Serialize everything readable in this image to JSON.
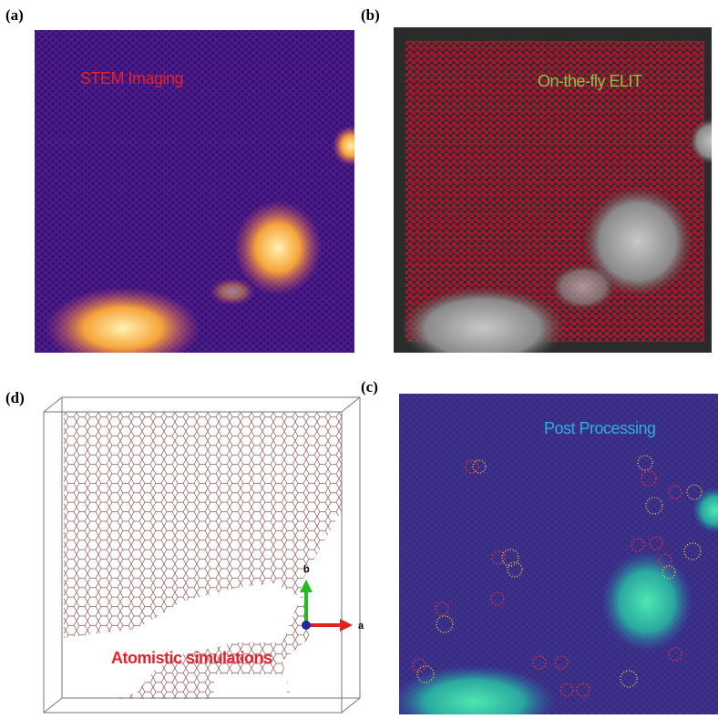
{
  "panels": [
    {
      "label": "(a)",
      "caption": "STEM Imaging"
    },
    {
      "label": "(b)",
      "caption": "On-the-fly ELIT"
    },
    {
      "label": "(d)",
      "caption": "Atomistic simulations",
      "axes": {
        "b": "b",
        "a": "a"
      }
    },
    {
      "label": "(c)",
      "caption": "Post Processing"
    }
  ]
}
